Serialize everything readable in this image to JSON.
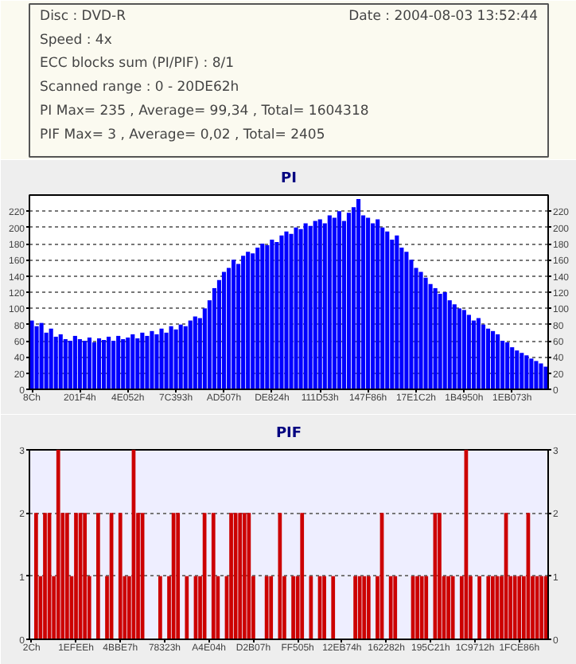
{
  "chart_data": [
    {
      "type": "other",
      "annotations": [
        "Date : 2004-08-03 13:52:44",
        "Disc : DVD-R",
        "Speed : 4x",
        "ECC blocks sum (PI/PIF) : 8/1",
        "Scanned range : 0 - 20DE62h",
        "PI Max= 235 , Average= 99,34 , Total= 1604318",
        "PIF Max= 3 , Average= 0,02 , Total= 2405"
      ]
    },
    {
      "type": "bar",
      "title": "PI",
      "grid": "y",
      "ylim": [
        0,
        240
      ],
      "yticks": [
        0,
        20,
        40,
        60,
        80,
        100,
        120,
        140,
        160,
        180,
        200,
        220
      ],
      "y2lim": [
        0,
        240
      ],
      "y2ticks": [
        0,
        20,
        40,
        60,
        80,
        100,
        120,
        140,
        160,
        180,
        200,
        220
      ],
      "categories": [
        "8Ch",
        null,
        null,
        null,
        null,
        null,
        null,
        null,
        null,
        null,
        "201F4h",
        null,
        null,
        null,
        null,
        null,
        null,
        null,
        null,
        null,
        "4E052h",
        null,
        null,
        null,
        null,
        null,
        null,
        null,
        null,
        null,
        "7C393h",
        null,
        null,
        null,
        null,
        null,
        null,
        null,
        null,
        null,
        "AD507h",
        null,
        null,
        null,
        null,
        null,
        null,
        null,
        null,
        null,
        "DE824h",
        null,
        null,
        null,
        null,
        null,
        null,
        null,
        null,
        null,
        "111D53h",
        null,
        null,
        null,
        null,
        null,
        null,
        null,
        null,
        null,
        "147F86h",
        null,
        null,
        null,
        null,
        null,
        null,
        null,
        null,
        null,
        "17E1C2h",
        null,
        null,
        null,
        null,
        null,
        null,
        null,
        null,
        null,
        "1B4950h",
        null,
        null,
        null,
        null,
        null,
        null,
        null,
        null,
        null,
        "1EB073h",
        null,
        null,
        null,
        null,
        null,
        null,
        null
      ],
      "series": [
        {
          "color": "#0000ff",
          "values": [
            85,
            78,
            82,
            70,
            75,
            65,
            68,
            62,
            60,
            66,
            62,
            60,
            64,
            58,
            63,
            61,
            65,
            60,
            66,
            62,
            64,
            68,
            63,
            70,
            66,
            72,
            68,
            75,
            70,
            78,
            74,
            80,
            78,
            85,
            90,
            88,
            100,
            110,
            125,
            135,
            145,
            150,
            160,
            155,
            165,
            170,
            168,
            175,
            180,
            178,
            185,
            182,
            190,
            195,
            192,
            200,
            198,
            205,
            202,
            208,
            210,
            205,
            215,
            212,
            220,
            208,
            218,
            225,
            235,
            215,
            212,
            205,
            210,
            200,
            195,
            185,
            190,
            175,
            170,
            160,
            150,
            145,
            138,
            130,
            125,
            118,
            120,
            110,
            105,
            100,
            98,
            92,
            85,
            88,
            80,
            75,
            72,
            68,
            60,
            58,
            52,
            48,
            45,
            42,
            38,
            35,
            32,
            28
          ]
        }
      ]
    },
    {
      "type": "bar",
      "title": "PIF",
      "grid": "y",
      "ylim": [
        0,
        3
      ],
      "yticks": [
        0,
        1,
        2,
        3
      ],
      "y2lim": [
        0,
        3
      ],
      "y2ticks": [
        0,
        1,
        2,
        3
      ],
      "categories": [
        "2Ch",
        null,
        null,
        null,
        null,
        null,
        null,
        null,
        null,
        null,
        "1EFEEh",
        null,
        null,
        null,
        null,
        null,
        null,
        null,
        null,
        null,
        "4BBE7h",
        null,
        null,
        null,
        null,
        null,
        null,
        null,
        null,
        null,
        "78323h",
        null,
        null,
        null,
        null,
        null,
        null,
        null,
        null,
        null,
        "A4E04h",
        null,
        null,
        null,
        null,
        null,
        null,
        null,
        null,
        null,
        "D2B07h",
        null,
        null,
        null,
        null,
        null,
        null,
        null,
        null,
        null,
        "FF505h",
        null,
        null,
        null,
        null,
        null,
        null,
        null,
        null,
        null,
        "12EB74h",
        null,
        null,
        null,
        null,
        null,
        null,
        null,
        null,
        null,
        "162282h",
        null,
        null,
        null,
        null,
        null,
        null,
        null,
        null,
        null,
        "195C21h",
        null,
        null,
        null,
        null,
        null,
        null,
        null,
        null,
        null,
        "1C9712h",
        null,
        null,
        null,
        null,
        null,
        null,
        null,
        null,
        null,
        "1FCE86h",
        null,
        null,
        null,
        null,
        null,
        null
      ],
      "series": [
        {
          "color": "#cc0000",
          "values": [
            0,
            2,
            1,
            2,
            2,
            1,
            3,
            2,
            2,
            1,
            2,
            2,
            2,
            1,
            0,
            2,
            0,
            1,
            2,
            0,
            2,
            1,
            1,
            3,
            2,
            2,
            0,
            0,
            0,
            1,
            0,
            1,
            2,
            2,
            0,
            1,
            0,
            1,
            1,
            2,
            0,
            2,
            1,
            0,
            1,
            2,
            2,
            2,
            2,
            2,
            1,
            0,
            0,
            1,
            1,
            0,
            2,
            1,
            0,
            1,
            1,
            2,
            0,
            1,
            0,
            1,
            1,
            0,
            1,
            0,
            0,
            0,
            0,
            1,
            1,
            1,
            1,
            0,
            1,
            2,
            0,
            1,
            1,
            0,
            0,
            0,
            1,
            1,
            1,
            1,
            0,
            2,
            2,
            1,
            1,
            1,
            0,
            1,
            3,
            1,
            0,
            1,
            0,
            1,
            1,
            1,
            1,
            2,
            1,
            1,
            1,
            1,
            2,
            1,
            1,
            1,
            1
          ]
        }
      ]
    }
  ]
}
